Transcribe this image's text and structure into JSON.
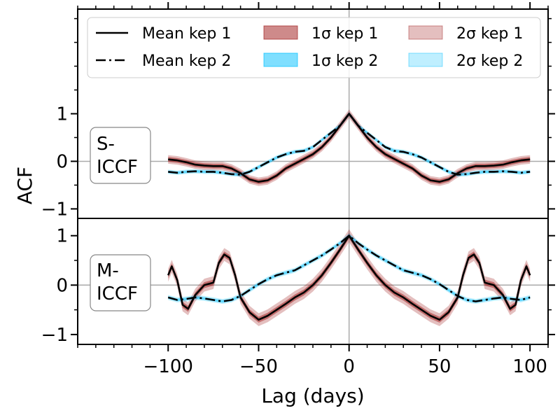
{
  "chart_data": {
    "type": "line",
    "xlabel": "Lag (days)",
    "ylabel": "ACF",
    "xlim": [
      -150,
      110
    ],
    "x_ticks": [
      -100,
      -50,
      0,
      50,
      100
    ],
    "x_tick_labels": [
      "−100",
      "−50",
      "0",
      "50",
      "100"
    ],
    "legend": {
      "placement": "top",
      "entries": [
        {
          "label": "Mean kep 1",
          "style": "solid-line",
          "color": "#000000"
        },
        {
          "label": "Mean kep 2",
          "style": "dashdot-line",
          "color": "#000000"
        },
        {
          "label": "1σ kep 1",
          "style": "patch",
          "color": "#a52a2a",
          "opacity": 0.55
        },
        {
          "label": "1σ kep 2",
          "style": "patch",
          "color": "#00bfff",
          "opacity": 0.5
        },
        {
          "label": "2σ kep 1",
          "style": "patch",
          "color": "#a52a2a",
          "opacity": 0.3
        },
        {
          "label": "2σ kep 2",
          "style": "patch",
          "color": "#00bfff",
          "opacity": 0.25
        }
      ]
    },
    "panels": [
      {
        "id": "s-iccf",
        "label_lines": [
          "S-",
          "ICCF"
        ],
        "ylim": [
          -1.2,
          3.2
        ],
        "y_ticks": [
          -1,
          0,
          1
        ],
        "y_tick_labels": [
          "−1",
          "0",
          "1"
        ],
        "series": [
          {
            "name": "Mean kep 1",
            "x": [
              -100,
              -95,
              -90,
              -85,
              -80,
              -75,
              -70,
              -65,
              -60,
              -55,
              -50,
              -45,
              -40,
              -35,
              -30,
              -25,
              -20,
              -15,
              -10,
              -5,
              0,
              5,
              10,
              15,
              20,
              25,
              30,
              35,
              40,
              45,
              50,
              55,
              60,
              65,
              70,
              75,
              80,
              85,
              90,
              95,
              100
            ],
            "y": [
              0.04,
              0.02,
              -0.02,
              -0.07,
              -0.09,
              -0.1,
              -0.1,
              -0.15,
              -0.25,
              -0.38,
              -0.43,
              -0.4,
              -0.3,
              -0.15,
              -0.05,
              0.05,
              0.15,
              0.3,
              0.5,
              0.75,
              1.0,
              0.75,
              0.5,
              0.3,
              0.15,
              0.05,
              -0.05,
              -0.15,
              -0.3,
              -0.4,
              -0.43,
              -0.38,
              -0.25,
              -0.15,
              -0.1,
              -0.1,
              -0.09,
              -0.07,
              -0.02,
              0.02,
              0.04
            ],
            "sigma1": 0.05,
            "sigma2": 0.09
          },
          {
            "name": "Mean kep 2",
            "x": [
              -100,
              -95,
              -90,
              -85,
              -80,
              -75,
              -70,
              -65,
              -60,
              -55,
              -50,
              -45,
              -40,
              -35,
              -30,
              -25,
              -20,
              -15,
              -10,
              -5,
              0,
              5,
              10,
              15,
              20,
              25,
              30,
              35,
              40,
              45,
              50,
              55,
              60,
              65,
              70,
              75,
              80,
              85,
              90,
              95,
              100
            ],
            "y": [
              -0.22,
              -0.24,
              -0.22,
              -0.21,
              -0.22,
              -0.22,
              -0.24,
              -0.27,
              -0.28,
              -0.22,
              -0.12,
              -0.02,
              0.08,
              0.15,
              0.2,
              0.22,
              0.3,
              0.45,
              0.6,
              0.75,
              1.0,
              0.75,
              0.6,
              0.45,
              0.3,
              0.22,
              0.2,
              0.15,
              0.08,
              -0.02,
              -0.12,
              -0.22,
              -0.28,
              -0.27,
              -0.24,
              -0.22,
              -0.22,
              -0.21,
              -0.22,
              -0.24,
              -0.22
            ],
            "sigma1": 0.025,
            "sigma2": 0.045
          }
        ]
      },
      {
        "id": "m-iccf",
        "label_lines": [
          "M-",
          "ICCF"
        ],
        "ylim": [
          -1.2,
          1.35
        ],
        "y_ticks": [
          -1,
          0,
          1
        ],
        "y_tick_labels": [
          "−1",
          "0",
          "1"
        ],
        "series": [
          {
            "name": "Mean kep 1",
            "x": [
              -100,
              -98,
              -95,
              -92,
              -89,
              -85,
              -80,
              -75,
              -72,
              -69,
              -66,
              -63,
              -60,
              -55,
              -50,
              -45,
              -40,
              -35,
              -30,
              -25,
              -20,
              -15,
              -10,
              -5,
              0,
              5,
              10,
              15,
              20,
              25,
              30,
              35,
              40,
              45,
              50,
              55,
              60,
              63,
              66,
              69,
              72,
              75,
              80,
              85,
              89,
              92,
              95,
              98,
              100
            ],
            "y": [
              0.2,
              0.38,
              0.1,
              -0.4,
              -0.48,
              -0.2,
              0.0,
              0.05,
              0.45,
              0.62,
              0.55,
              0.2,
              -0.25,
              -0.55,
              -0.7,
              -0.62,
              -0.5,
              -0.38,
              -0.25,
              -0.15,
              0.0,
              0.2,
              0.45,
              0.72,
              1.0,
              0.72,
              0.45,
              0.2,
              0.0,
              -0.15,
              -0.25,
              -0.38,
              -0.5,
              -0.62,
              -0.7,
              -0.55,
              -0.25,
              0.2,
              0.55,
              0.62,
              0.45,
              0.05,
              0.0,
              -0.2,
              -0.48,
              -0.4,
              0.1,
              0.38,
              0.2
            ],
            "sigma1": 0.06,
            "sigma2": 0.13
          },
          {
            "name": "Mean kep 2",
            "x": [
              -100,
              -95,
              -90,
              -85,
              -80,
              -75,
              -70,
              -65,
              -60,
              -55,
              -50,
              -45,
              -40,
              -35,
              -30,
              -25,
              -20,
              -15,
              -10,
              -5,
              0,
              5,
              10,
              15,
              20,
              25,
              30,
              35,
              40,
              45,
              50,
              55,
              60,
              65,
              70,
              75,
              80,
              85,
              90,
              95,
              100
            ],
            "y": [
              -0.25,
              -0.3,
              -0.28,
              -0.25,
              -0.27,
              -0.3,
              -0.33,
              -0.3,
              -0.22,
              -0.1,
              0.02,
              0.12,
              0.2,
              0.25,
              0.3,
              0.4,
              0.5,
              0.6,
              0.72,
              0.85,
              1.0,
              0.85,
              0.72,
              0.6,
              0.5,
              0.4,
              0.3,
              0.25,
              0.2,
              0.12,
              0.02,
              -0.1,
              -0.22,
              -0.3,
              -0.33,
              -0.3,
              -0.27,
              -0.25,
              -0.28,
              -0.3,
              -0.25
            ],
            "sigma1": 0.025,
            "sigma2": 0.05
          }
        ]
      }
    ]
  }
}
